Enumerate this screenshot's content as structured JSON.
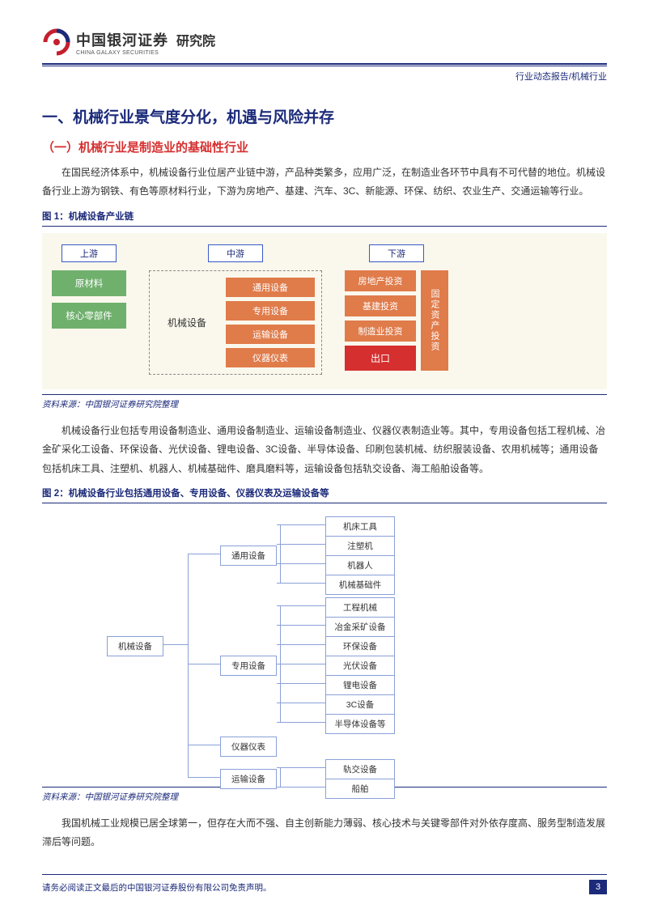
{
  "header": {
    "brand_cn": "中国银河证券",
    "brand_en": "CHINA GALAXY SECURITIES",
    "dept": "研究院",
    "crumb": "行业动态报告/机械行业"
  },
  "h1": "一、机械行业景气度分化，机遇与风险并存",
  "h2_1": "（一）机械行业是制造业的基础性行业",
  "p1": "在国民经济体系中，机械设备行业位居产业链中游，产品种类繁多，应用广泛，在制造业各环节中具有不可代替的地位。机械设备行业上游为钢铁、有色等原材料行业，下游为房地产、基建、汽车、3C、新能源、环保、纺织、农业生产、交通运输等行业。",
  "fig1": {
    "label": "图 1：机械设备产业链",
    "cols": {
      "up": "上游",
      "mid": "中游",
      "down": "下游"
    },
    "up_items": [
      "原材料",
      "核心零部件"
    ],
    "mid_label": "机械设备",
    "mid_items": [
      "通用设备",
      "专用设备",
      "运输设备",
      "仪器仪表"
    ],
    "down_left": [
      "房地产投资",
      "基建投资",
      "制造业投资"
    ],
    "down_red": "出口",
    "down_tall": "固定资产投资",
    "src": "资料来源：中国银河证券研究院整理",
    "colors": {
      "bg": "#faf8ec",
      "green": "#6fb06d",
      "orange": "#e07b4a",
      "red": "#d62f2f",
      "border": "#3a58c8"
    }
  },
  "p2": "机械设备行业包括专用设备制造业、通用设备制造业、运输设备制造业、仪器仪表制造业等。其中，专用设备包括工程机械、冶金矿采化工设备、环保设备、光伏设备、锂电设备、3C设备、半导体设备、印刷包装机械、纺织服装设备、农用机械等；通用设备包括机床工具、注塑机、机器人、机械基础件、磨具磨料等，运输设备包括轨交设备、海工船舶设备等。",
  "fig2": {
    "label": "图 2：机械设备行业包括通用设备、专用设备、仪器仪表及运输设备等",
    "root": "机械设备",
    "branches": [
      {
        "name": "通用设备",
        "leaves": [
          "机床工具",
          "注塑机",
          "机器人",
          "机械基础件"
        ]
      },
      {
        "name": "专用设备",
        "leaves": [
          "工程机械",
          "冶金采矿设备",
          "环保设备",
          "光伏设备",
          "锂电设备",
          "3C设备",
          "半导体设备等"
        ]
      },
      {
        "name": "仪器仪表",
        "leaves": []
      },
      {
        "name": "运输设备",
        "leaves": [
          "轨交设备",
          "船舶"
        ]
      }
    ],
    "src": "资料来源：中国银河证券研究院整理",
    "colors": {
      "border": "#8aa0d8"
    }
  },
  "p3": "我国机械工业规模已居全球第一，但存在大而不强、自主创新能力薄弱、核心技术与关键零部件对外依存度高、服务型制造发展滞后等问题。",
  "footer": {
    "text": "请务必阅读正文最后的中国银河证券股份有限公司免责声明。",
    "page": "3"
  }
}
